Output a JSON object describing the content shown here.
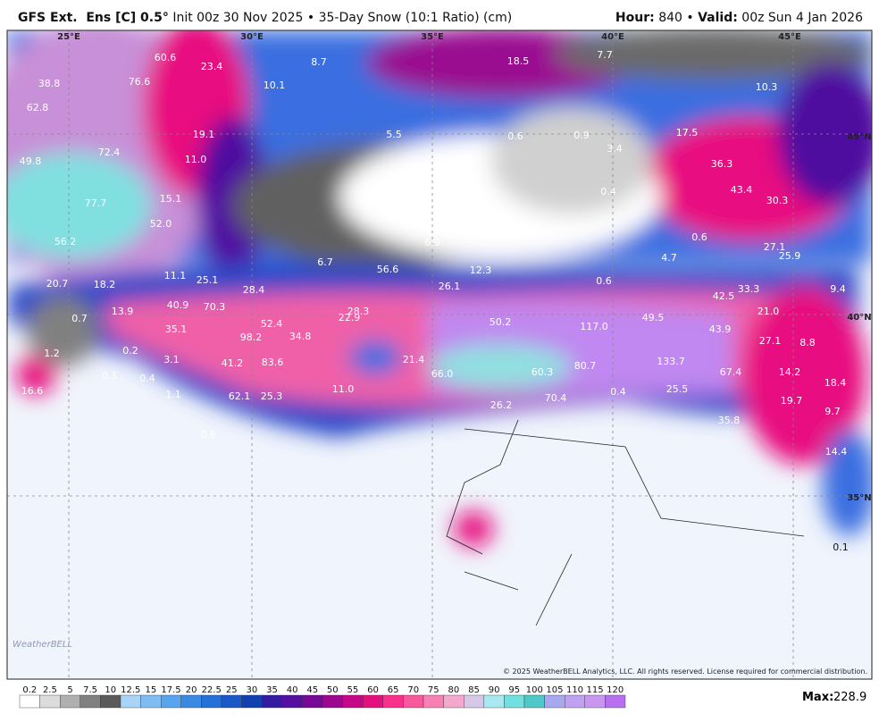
{
  "header": {
    "title": "GFS Ext.  Ens [C] 0.5°",
    "subtitle": "Init 00z 30 Nov 2025 • 35-Day Snow (10:1 Ratio) (cm)",
    "hour_label": "Hour:",
    "hour_value": "840",
    "separator": "•",
    "valid_label": "Valid:",
    "valid_value": "00z Sun 4 Jan 2026"
  },
  "map": {
    "grid_labels": [
      "25°E",
      "30°E",
      "35°E",
      "40°E",
      "45°E",
      "45°N",
      "40°N",
      "35°N"
    ],
    "point_values": [
      "60.6",
      "23.4",
      "38.8",
      "76.6",
      "10.1",
      "8.7",
      "18.5",
      "7.7",
      "10.3",
      "62.8",
      "19.1",
      "5.5",
      "0.6",
      "0.9",
      "17.5",
      "3.4",
      "72.4",
      "49.8",
      "11.0",
      "36.3",
      "43.4",
      "30.3",
      "0.4",
      "77.7",
      "15.1",
      "52.0",
      "56.2",
      "6.9",
      "0.6",
      "27.1",
      "25.9",
      "6.7",
      "56.6",
      "12.3",
      "4.7",
      "11.1",
      "25.1",
      "28.4",
      "20.7",
      "18.2",
      "26.1",
      "0.6",
      "33.3",
      "9.4",
      "42.5",
      "13.9",
      "40.9",
      "70.3",
      "28.3",
      "22.9",
      "0.7",
      "21.0",
      "52.4",
      "50.2",
      "117.0",
      "49.5",
      "43.9",
      "35.1",
      "98.2",
      "34.8",
      "27.1",
      "8.8",
      "1.2",
      "0.2",
      "3.1",
      "41.2",
      "83.6",
      "21.4",
      "80.7",
      "133.7",
      "67.4",
      "14.2",
      "0.1",
      "0.4",
      "66.0",
      "60.3",
      "18.4",
      "16.6",
      "1.1",
      "62.1",
      "25.3",
      "11.0",
      "70.4",
      "0.4",
      "25.5",
      "19.7",
      "26.2",
      "9.7",
      "0.6",
      "35.8",
      "14.4",
      "0.1"
    ],
    "logo": "WeatherBELL",
    "copyright": "© 2025 WeatherBELL Analytics, LLC. All rights reserved. License required for commercial distribution."
  },
  "colorbar": {
    "labels": [
      "0.2",
      "2.5",
      "5",
      "7.5",
      "10",
      "12.5",
      "15",
      "17.5",
      "20",
      "22.5",
      "25",
      "30",
      "35",
      "40",
      "45",
      "50",
      "55",
      "60",
      "65",
      "70",
      "75",
      "80",
      "85",
      "90",
      "95",
      "100",
      "105",
      "110",
      "115",
      "120"
    ],
    "colors": [
      "#ffffff",
      "#dcdcdc",
      "#b0b0b0",
      "#808080",
      "#5a5a5a",
      "#a8d4f8",
      "#80bcf4",
      "#58a4ee",
      "#3a8ae4",
      "#2270d8",
      "#1a58c8",
      "#1240b0",
      "#341ca0",
      "#5410a0",
      "#780898",
      "#9c0890",
      "#c40888",
      "#e41080",
      "#f8308c",
      "#f8589c",
      "#f880b4",
      "#f4a8cc",
      "#d8c8e8",
      "#a8e8f0",
      "#70e0e0",
      "#50c8c8",
      "#a8a8f0",
      "#c0a0f0",
      "#c898f0",
      "#b870f0"
    ],
    "max_label": "Max:",
    "max_value": "228.9"
  }
}
